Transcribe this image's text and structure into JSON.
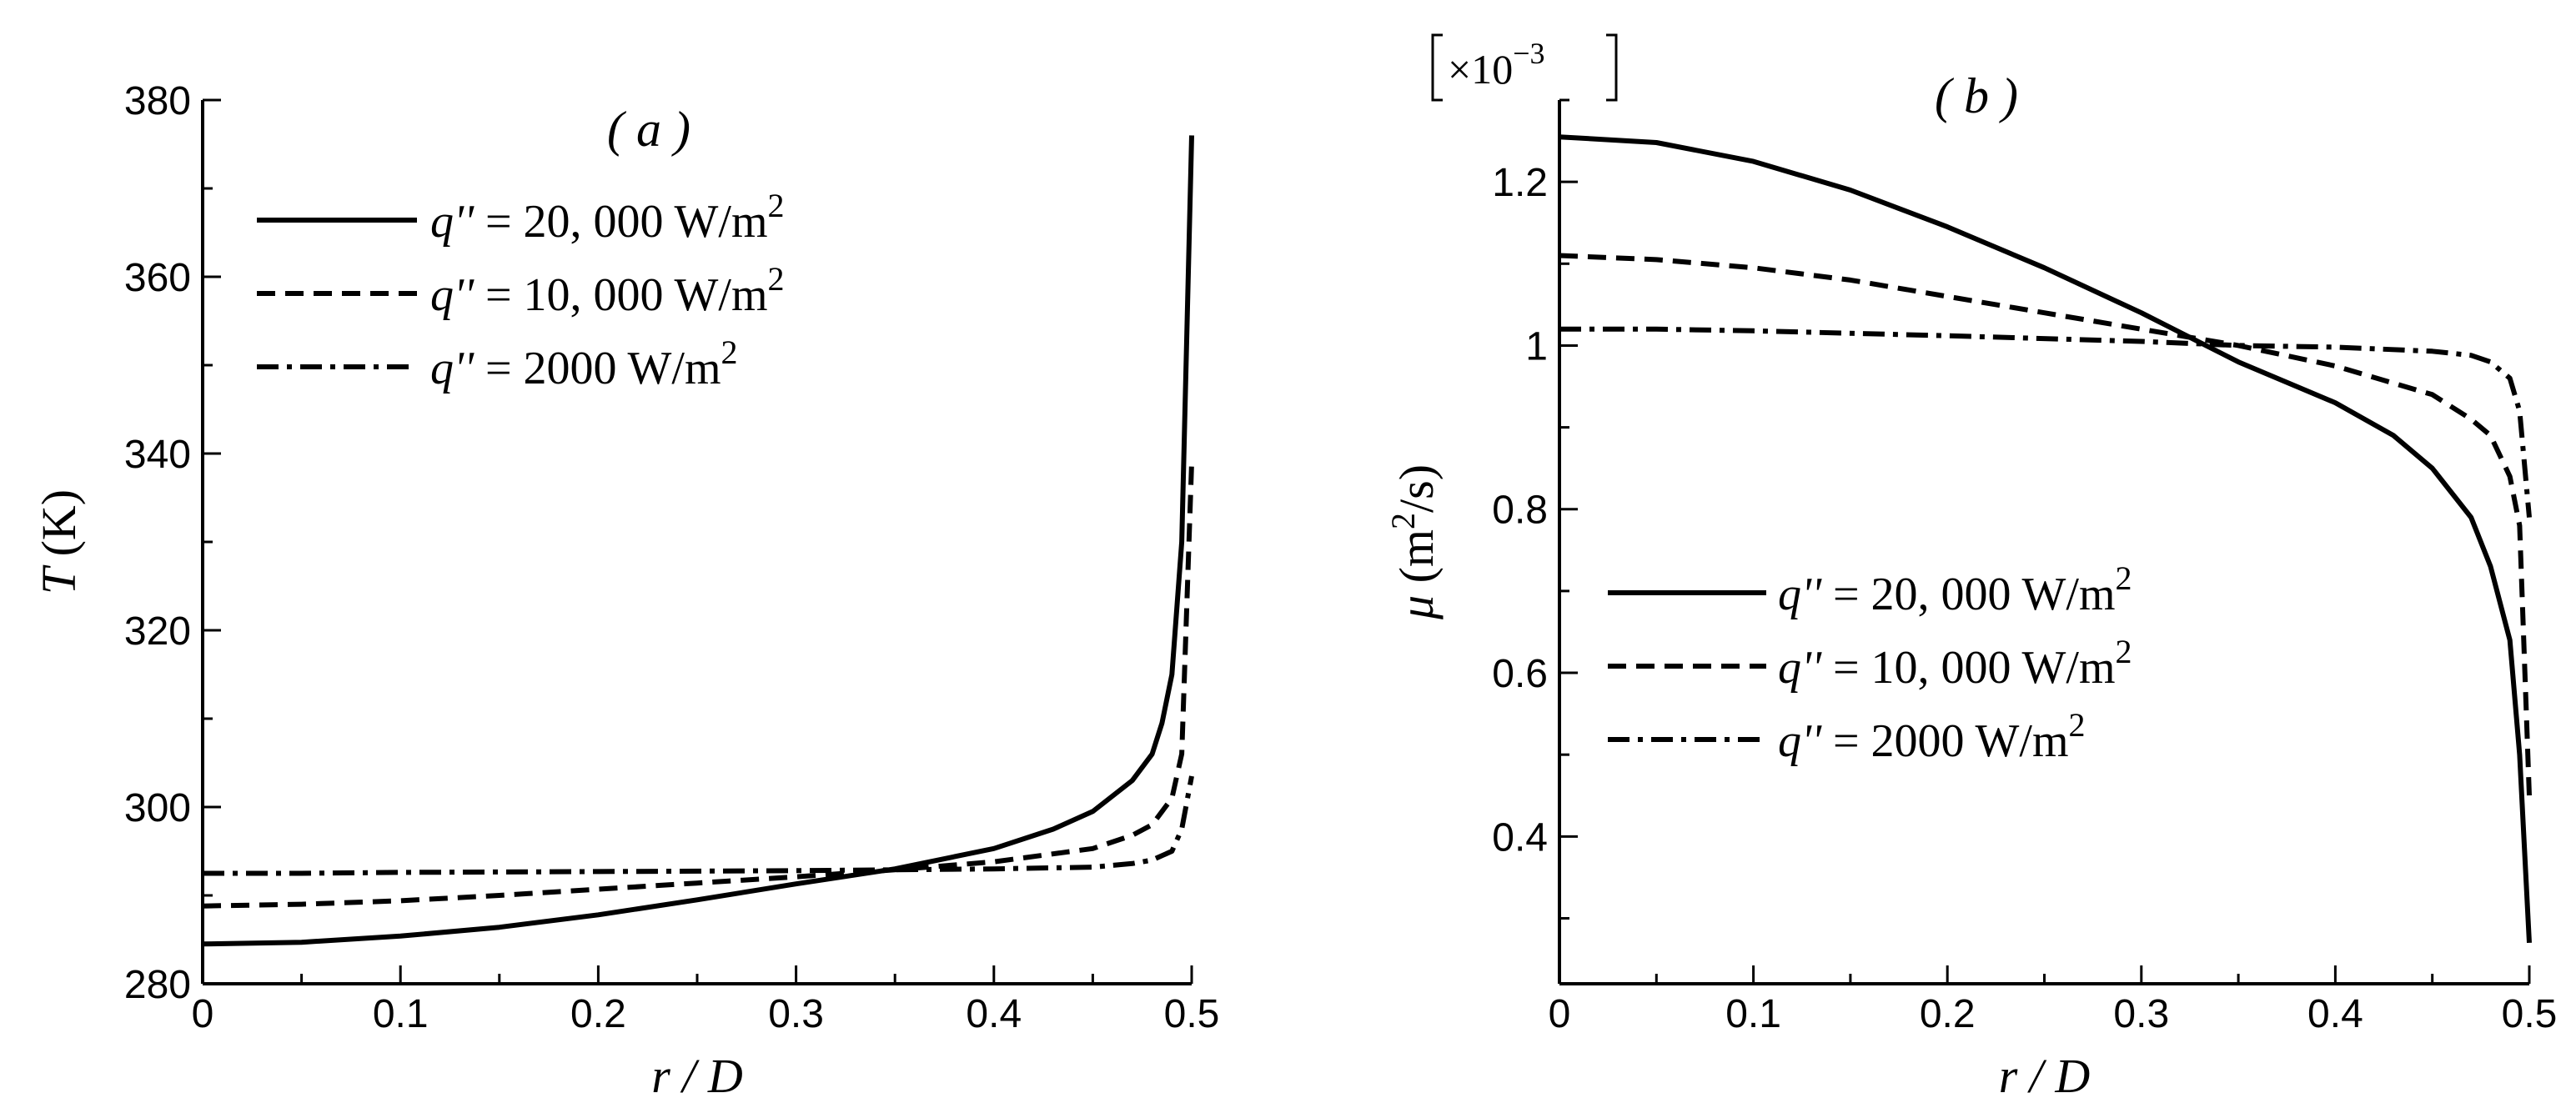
{
  "chart_data": [
    {
      "type": "line",
      "panel_label": "( a )",
      "xlabel": "r / D",
      "ylabel_symbol": "T",
      "ylabel_unit": "(K)",
      "xlim": [
        0,
        0.5
      ],
      "ylim": [
        280,
        380
      ],
      "xticks": [
        0,
        0.1,
        0.2,
        0.3,
        0.4,
        0.5
      ],
      "xtick_labels": [
        "0",
        "0.1",
        "0.2",
        "0.3",
        "0.4",
        "0.5"
      ],
      "yticks": [
        280,
        300,
        320,
        340,
        360,
        380
      ],
      "ytick_labels": [
        "280",
        "300",
        "320",
        "340",
        "360",
        "380"
      ],
      "legend": [
        "q'' = 20, 000 W/m2",
        "q'' = 10, 000 W/m2",
        "q'' = 2000 W/m2"
      ],
      "series": [
        {
          "name": "q'' = 20, 000 W/m2",
          "style": "solid",
          "x": [
            0,
            0.05,
            0.1,
            0.15,
            0.2,
            0.25,
            0.3,
            0.35,
            0.4,
            0.43,
            0.45,
            0.47,
            0.48,
            0.485,
            0.49,
            0.495,
            0.5
          ],
          "y": [
            284.5,
            284.7,
            285.4,
            286.4,
            287.8,
            289.5,
            291.3,
            293.0,
            295.3,
            297.5,
            299.5,
            303.0,
            306.0,
            309.5,
            315.0,
            330.0,
            376.0
          ]
        },
        {
          "name": "q'' = 10, 000 W/m2",
          "style": "dash",
          "x": [
            0,
            0.05,
            0.1,
            0.15,
            0.2,
            0.25,
            0.3,
            0.35,
            0.4,
            0.45,
            0.47,
            0.48,
            0.49,
            0.495,
            0.5
          ],
          "y": [
            288.8,
            289.0,
            289.4,
            290.0,
            290.7,
            291.4,
            292.1,
            292.9,
            293.8,
            295.3,
            296.8,
            298.0,
            301.0,
            306.0,
            339.0
          ]
        },
        {
          "name": "q'' = 2000 W/m2",
          "style": "dashdot",
          "x": [
            0,
            0.05,
            0.1,
            0.2,
            0.3,
            0.35,
            0.4,
            0.45,
            0.47,
            0.48,
            0.49,
            0.495,
            0.5
          ],
          "y": [
            292.5,
            292.5,
            292.6,
            292.7,
            292.8,
            292.9,
            293.0,
            293.2,
            293.6,
            294.0,
            295.0,
            297.5,
            303.5
          ]
        }
      ]
    },
    {
      "type": "line",
      "panel_label": "( b )",
      "xlabel": "r / D",
      "ylabel_symbol": "μ",
      "ylabel_unit": "(m2/s)",
      "multiplier": "×10−3",
      "xlim": [
        0,
        0.5
      ],
      "ylim": [
        0.22,
        1.3
      ],
      "xticks": [
        0,
        0.1,
        0.2,
        0.3,
        0.4,
        0.5
      ],
      "xtick_labels": [
        "0",
        "0.1",
        "0.2",
        "0.3",
        "0.4",
        "0.5"
      ],
      "yticks": [
        0.4,
        0.6,
        0.8,
        1.0,
        1.2
      ],
      "ytick_labels": [
        "0.4",
        "0.6",
        "0.8",
        "1",
        "1.2"
      ],
      "legend": [
        "q'' = 20, 000 W/m2",
        "q'' = 10, 000 W/m2",
        "q'' = 2000 W/m2"
      ],
      "series": [
        {
          "name": "q'' = 20, 000 W/m2",
          "style": "solid",
          "x": [
            0,
            0.05,
            0.1,
            0.15,
            0.2,
            0.25,
            0.3,
            0.35,
            0.4,
            0.43,
            0.45,
            0.47,
            0.48,
            0.49,
            0.495,
            0.5
          ],
          "y": [
            1.255,
            1.248,
            1.225,
            1.19,
            1.145,
            1.095,
            1.04,
            0.98,
            0.93,
            0.89,
            0.85,
            0.79,
            0.73,
            0.64,
            0.5,
            0.27
          ]
        },
        {
          "name": "q'' = 10, 000 W/m2",
          "style": "dash",
          "x": [
            0,
            0.05,
            0.1,
            0.15,
            0.2,
            0.25,
            0.3,
            0.35,
            0.4,
            0.45,
            0.47,
            0.48,
            0.49,
            0.495,
            0.5
          ],
          "y": [
            1.11,
            1.105,
            1.095,
            1.08,
            1.06,
            1.04,
            1.02,
            1.0,
            0.975,
            0.94,
            0.91,
            0.89,
            0.84,
            0.78,
            0.45
          ]
        },
        {
          "name": "q'' = 2000 W/m2",
          "style": "dashdot",
          "x": [
            0,
            0.05,
            0.1,
            0.2,
            0.3,
            0.35,
            0.4,
            0.45,
            0.47,
            0.48,
            0.49,
            0.495,
            0.5
          ],
          "y": [
            1.02,
            1.02,
            1.018,
            1.012,
            1.005,
            1.0,
            0.998,
            0.993,
            0.988,
            0.98,
            0.96,
            0.92,
            0.79
          ]
        }
      ]
    }
  ]
}
